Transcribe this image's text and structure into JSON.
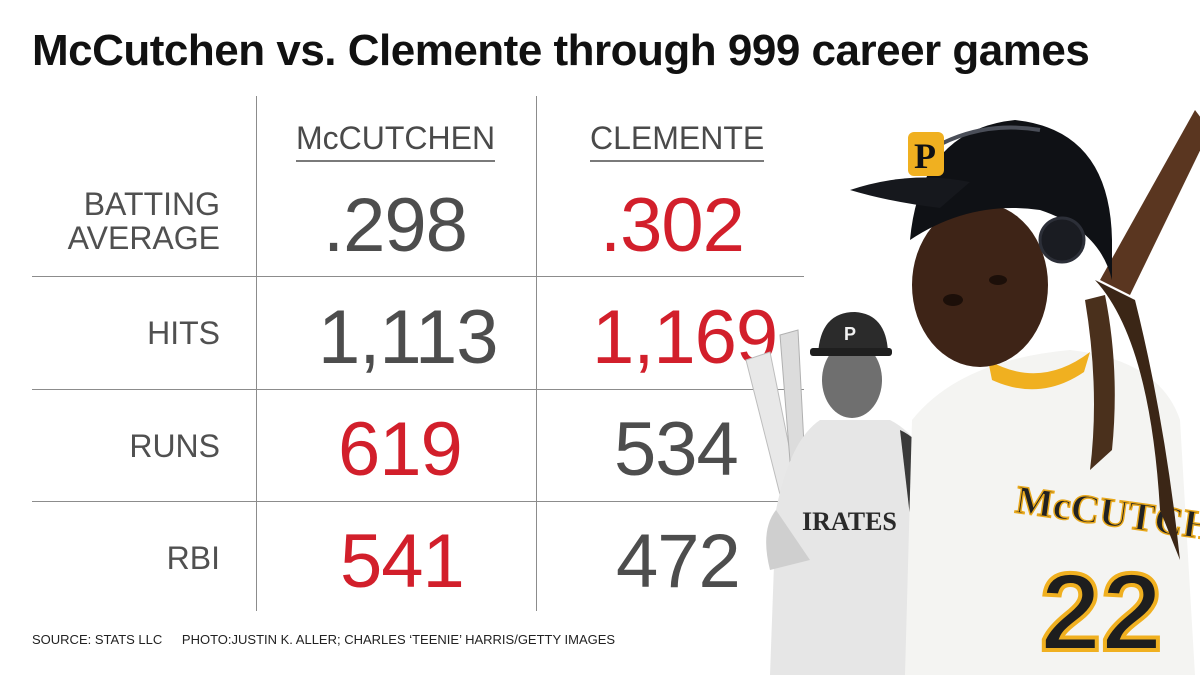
{
  "title": "McCutchen vs. Clemente through 999 career games",
  "columns": [
    "McCUTCHEN",
    "CLEMENTE"
  ],
  "rows": [
    {
      "label_lines": [
        "BATTING",
        "AVERAGE"
      ],
      "values": [
        ".298",
        ".302"
      ],
      "leader": 1
    },
    {
      "label_lines": [
        "HITS"
      ],
      "values": [
        "1,113",
        "1,169"
      ],
      "leader": 1
    },
    {
      "label_lines": [
        "RUNS"
      ],
      "values": [
        "619",
        "534"
      ],
      "leader": 0
    },
    {
      "label_lines": [
        "RBI"
      ],
      "values": [
        "541",
        "472"
      ],
      "leader": 0
    }
  ],
  "footer": {
    "source": "SOURCE: STATS LLC",
    "photo": "PHOTO:JUSTIN K. ALLER; CHARLES ‘TEENIE’ HARRIS/GETTY IMAGES"
  },
  "colors": {
    "leader": "#d21f2b",
    "other": "#4d4d4d",
    "rule": "#8c8c8c"
  },
  "chart_data": {
    "type": "table",
    "title": "McCutchen vs. Clemente through 999 career games",
    "columns": [
      "McCUTCHEN",
      "CLEMENTE"
    ],
    "rows": [
      {
        "stat": "BATTING AVERAGE",
        "values": [
          0.298,
          0.302
        ]
      },
      {
        "stat": "HITS",
        "values": [
          1113,
          1169
        ]
      },
      {
        "stat": "RUNS",
        "values": [
          619,
          534
        ]
      },
      {
        "stat": "RBI",
        "values": [
          541,
          472
        ]
      }
    ]
  }
}
